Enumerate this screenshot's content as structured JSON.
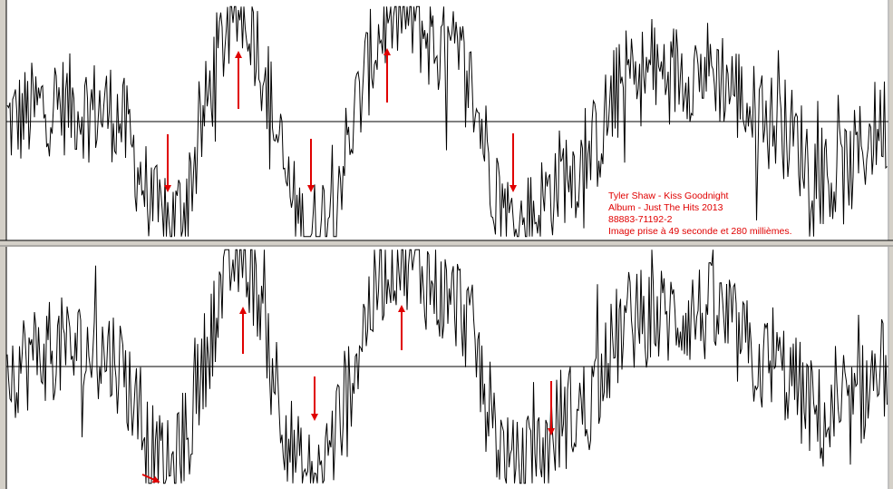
{
  "caption": {
    "lines": [
      "Tyler Shaw - Kiss Goodnight",
      "Album - Just The Hits 2013",
      "88883-71192-2",
      "Image prise à 49 seconde et 280 millièmes."
    ]
  }
}
